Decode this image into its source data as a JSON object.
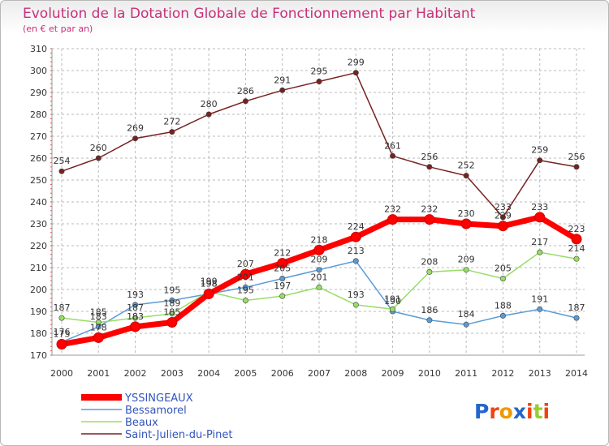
{
  "chart_data": {
    "type": "line",
    "title": "Evolution de la Dotation Globale de Fonctionnement par Habitant",
    "subtitle": "(en € et par an)",
    "xlabel": "",
    "ylabel": "",
    "x": [
      "2000",
      "2001",
      "2002",
      "2003",
      "2004",
      "2005",
      "2006",
      "2007",
      "2008",
      "2009",
      "2010",
      "2011",
      "2012",
      "2013",
      "2014"
    ],
    "ylim": [
      170,
      310
    ],
    "yticks": [
      170,
      180,
      190,
      200,
      210,
      220,
      230,
      240,
      250,
      260,
      270,
      280,
      290,
      300,
      310
    ],
    "grid": true,
    "legend_position": "bottom-left",
    "series": [
      {
        "name": "YSSINGEAUX",
        "color": "#ff0000",
        "values": [
          175,
          178,
          183,
          185,
          198,
          207,
          212,
          218,
          224,
          232,
          232,
          230,
          229,
          233,
          223
        ],
        "labels": [
          "175",
          "178",
          "183",
          "185",
          "198",
          "207",
          "212",
          "218",
          "224",
          "232",
          "232",
          "230",
          "229",
          "233",
          "223"
        ]
      },
      {
        "name": "Bessamorel",
        "color": "#5b9bd5",
        "values": [
          176,
          183,
          193,
          195,
          198,
          201,
          205,
          209,
          213,
          190,
          186,
          184,
          188,
          191,
          187
        ],
        "labels": [
          "176",
          "183",
          "193",
          "195",
          "198",
          "201",
          "205",
          "209",
          "213",
          "190",
          "186",
          "184",
          "188",
          "191",
          "187"
        ]
      },
      {
        "name": "Beaux",
        "color": "#99dd66",
        "values": [
          187,
          185,
          187,
          189,
          199,
          195,
          197,
          201,
          193,
          191,
          208,
          209,
          205,
          217,
          214
        ],
        "labels": [
          "187",
          "185",
          "187",
          "189",
          "199",
          "195",
          "197",
          "201",
          "193",
          "191",
          "208",
          "209",
          "205",
          "217",
          "214"
        ]
      },
      {
        "name": "Saint-Julien-du-Pinet",
        "color": "#772222",
        "values": [
          254,
          260,
          269,
          272,
          280,
          286,
          291,
          295,
          299,
          261,
          256,
          252,
          233,
          259,
          256
        ],
        "labels": [
          "254",
          "260",
          "269",
          "272",
          "280",
          "286",
          "291",
          "295",
          "299",
          "261",
          "256",
          "252",
          "233",
          "259",
          "256"
        ]
      }
    ]
  },
  "logo": {
    "text": "Proxiti",
    "letter_colors": [
      "#2266cc",
      "#ee4411",
      "#ee9900",
      "#2266cc",
      "#ee4411",
      "#99cc33",
      "#ee4411"
    ]
  }
}
